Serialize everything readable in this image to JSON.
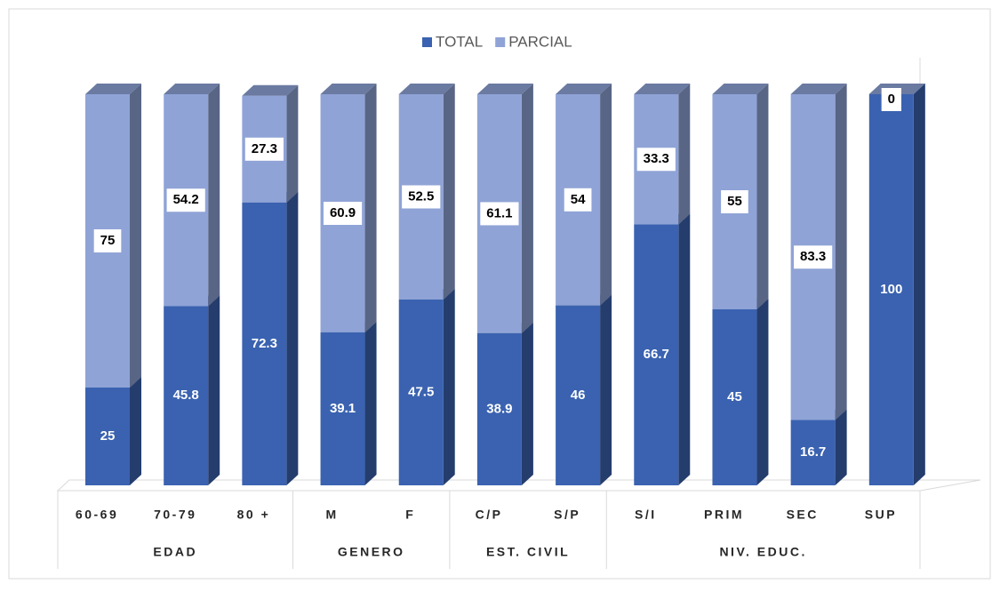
{
  "chart_data": {
    "type": "stacked_bar_3d",
    "groups": [
      {
        "name": "EDAD",
        "categories": [
          "60-69",
          "70-79",
          "80 +"
        ]
      },
      {
        "name": "GENERO",
        "categories": [
          "M",
          "F"
        ]
      },
      {
        "name": "EST. CIVIL",
        "categories": [
          "C/P",
          "S/P"
        ]
      },
      {
        "name": "NIV. EDUC.",
        "categories": [
          "S/I",
          "PRIM",
          "SEC",
          "SUP"
        ]
      }
    ],
    "series": [
      {
        "name": "TOTAL",
        "color": "#3a62b0",
        "values": [
          25,
          45.8,
          72.3,
          39.1,
          47.5,
          38.9,
          46,
          66.7,
          45,
          16.7,
          100
        ]
      },
      {
        "name": "PARCIAL",
        "color": "#8fa3d6",
        "values": [
          75,
          54.2,
          27.3,
          60.9,
          52.5,
          61.1,
          54,
          33.3,
          55,
          83.3,
          0
        ]
      }
    ],
    "legend": "top"
  }
}
